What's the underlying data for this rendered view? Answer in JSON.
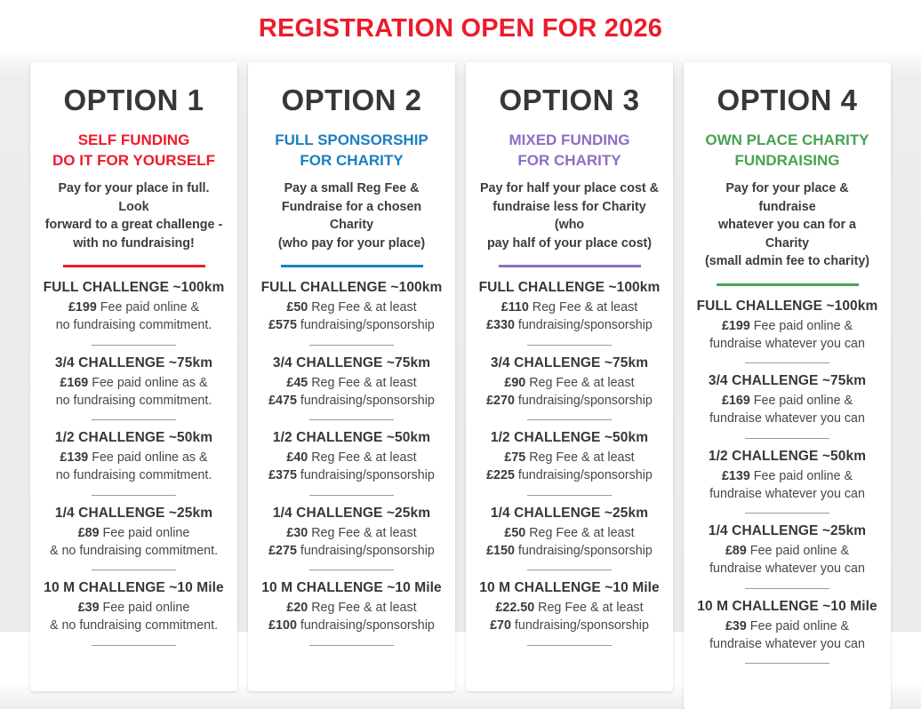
{
  "page": {
    "title": "REGISTRATION OPEN FOR 2026",
    "title_color": "#ed1b2c",
    "board_background": "#ebebeb",
    "card_background": "#ffffff"
  },
  "options": [
    {
      "name": "OPTION 1",
      "accent": "#ed1b2c",
      "subtitle_lines": [
        "SELF FUNDING",
        "DO IT FOR YOURSELF"
      ],
      "description_lines": [
        "Pay for your place in full. Look",
        "forward to a great challenge -",
        "with no fundraising!"
      ],
      "items": [
        {
          "heading": "FULL CHALLENGE ~100km",
          "lines": [
            {
              "b": "£199",
              "t": " Fee paid online &"
            },
            {
              "b": "",
              "t": "no fundraising commitment."
            }
          ]
        },
        {
          "heading": "3/4 CHALLENGE ~75km",
          "lines": [
            {
              "b": "£169",
              "t": " Fee paid online as &"
            },
            {
              "b": "",
              "t": "no fundraising commitment."
            }
          ]
        },
        {
          "heading": "1/2 CHALLENGE ~50km",
          "lines": [
            {
              "b": "£139",
              "t": " Fee paid online as &"
            },
            {
              "b": "",
              "t": "no fundraising commitment."
            }
          ]
        },
        {
          "heading": "1/4 CHALLENGE ~25km",
          "lines": [
            {
              "b": "£89",
              "t": " Fee paid online"
            },
            {
              "b": "",
              "t": "& no fundraising commitment."
            }
          ]
        },
        {
          "heading": "10 M CHALLENGE ~10 Mile",
          "lines": [
            {
              "b": "£39",
              "t": " Fee paid online"
            },
            {
              "b": "",
              "t": "& no fundraising commitment."
            }
          ]
        }
      ]
    },
    {
      "name": "OPTION 2",
      "accent": "#1b7ec2",
      "subtitle_lines": [
        "FULL SPONSORSHIP",
        "FOR CHARITY"
      ],
      "description_lines": [
        "Pay a small Reg Fee &",
        "Fundraise for a chosen Charity",
        "(who pay for your place)"
      ],
      "items": [
        {
          "heading": "FULL CHALLENGE ~100km",
          "lines": [
            {
              "b": "£50",
              "t": " Reg Fee & at least"
            },
            {
              "b": "£575",
              "t": " fundraising/sponsorship"
            }
          ]
        },
        {
          "heading": "3/4 CHALLENGE ~75km",
          "lines": [
            {
              "b": "£45",
              "t": " Reg Fee & at least"
            },
            {
              "b": "£475",
              "t": " fundraising/sponsorship"
            }
          ]
        },
        {
          "heading": "1/2 CHALLENGE ~50km",
          "lines": [
            {
              "b": "£40",
              "t": " Reg Fee & at least"
            },
            {
              "b": "£375",
              "t": " fundraising/sponsorship"
            }
          ]
        },
        {
          "heading": "1/4 CHALLENGE ~25km",
          "lines": [
            {
              "b": "£30",
              "t": " Reg Fee & at least"
            },
            {
              "b": "£275",
              "t": " fundraising/sponsorship"
            }
          ]
        },
        {
          "heading": "10 M CHALLENGE ~10 Mile",
          "lines": [
            {
              "b": "£20",
              "t": " Reg Fee & at least"
            },
            {
              "b": "£100",
              "t": " fundraising/sponsorship"
            }
          ]
        }
      ]
    },
    {
      "name": "OPTION 3",
      "accent": "#8d6ec4",
      "subtitle_lines": [
        "MIXED FUNDING",
        "FOR CHARITY"
      ],
      "description_lines": [
        "Pay for half your place cost &",
        "fundraise less for Charity (who",
        "pay half of your place cost)"
      ],
      "items": [
        {
          "heading": "FULL CHALLENGE ~100km",
          "lines": [
            {
              "b": "£110",
              "t": " Reg Fee & at least"
            },
            {
              "b": "£330",
              "t": " fundraising/sponsorship"
            }
          ]
        },
        {
          "heading": "3/4 CHALLENGE ~75km",
          "lines": [
            {
              "b": "£90",
              "t": " Reg Fee & at least"
            },
            {
              "b": "£270",
              "t": " fundraising/sponsorship"
            }
          ]
        },
        {
          "heading": "1/2 CHALLENGE ~50km",
          "lines": [
            {
              "b": "£75",
              "t": " Reg Fee & at least"
            },
            {
              "b": "£225",
              "t": " fundraising/sponsorship"
            }
          ]
        },
        {
          "heading": "1/4 CHALLENGE ~25km",
          "lines": [
            {
              "b": "£50",
              "t": " Reg Fee & at least"
            },
            {
              "b": "£150",
              "t": " fundraising/sponsorship"
            }
          ]
        },
        {
          "heading": "10 M CHALLENGE ~10 Mile",
          "lines": [
            {
              "b": "£22.50",
              "t": " Reg Fee & at least"
            },
            {
              "b": "£70",
              "t": " fundraising/sponsorship"
            }
          ]
        }
      ]
    },
    {
      "name": "OPTION 4",
      "accent": "#47a351",
      "subtitle_lines": [
        "OWN PLACE CHARITY",
        "FUNDRAISING"
      ],
      "description_lines": [
        "Pay for your place & fundraise",
        "whatever you can for a Charity",
        "(small admin fee to charity)"
      ],
      "items": [
        {
          "heading": "FULL CHALLENGE ~100km",
          "lines": [
            {
              "b": "£199",
              "t": " Fee paid online &"
            },
            {
              "b": "",
              "t": "fundraise whatever you can"
            }
          ]
        },
        {
          "heading": "3/4 CHALLENGE ~75km",
          "lines": [
            {
              "b": "£169",
              "t": " Fee paid online &"
            },
            {
              "b": "",
              "t": "fundraise whatever you can"
            }
          ]
        },
        {
          "heading": "1/2 CHALLENGE ~50km",
          "lines": [
            {
              "b": "£139",
              "t": " Fee paid online &"
            },
            {
              "b": "",
              "t": "fundraise whatever you can"
            }
          ]
        },
        {
          "heading": "1/4 CHALLENGE ~25km",
          "lines": [
            {
              "b": "£89",
              "t": " Fee paid online &"
            },
            {
              "b": "",
              "t": "fundraise whatever you can"
            }
          ]
        },
        {
          "heading": "10 M CHALLENGE ~10 Mile",
          "lines": [
            {
              "b": "£39",
              "t": " Fee paid online &"
            },
            {
              "b": "",
              "t": "fundraise whatever you can"
            }
          ]
        }
      ]
    }
  ]
}
